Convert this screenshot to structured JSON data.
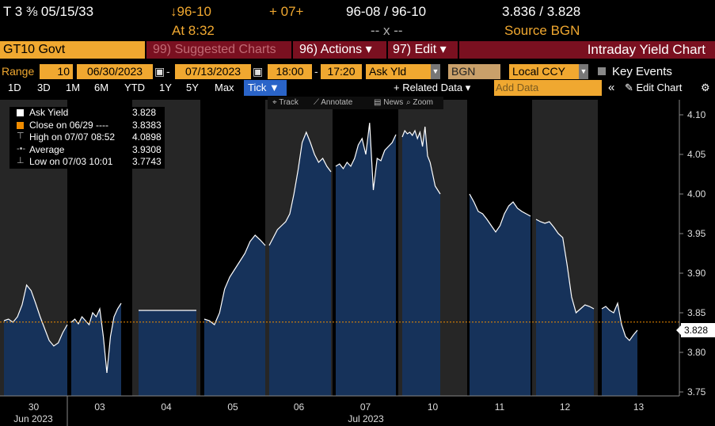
{
  "ticker": {
    "security": "T 3 ⅜ 05/15/33",
    "change": "↓96-10",
    "change_at": "At 8:32",
    "net": "+ 07+",
    "bid_ask": "96-08 / 96-10",
    "bid_ask_size": "-- x --",
    "yields": "3.836 / 3.828",
    "source": "Source BGN"
  },
  "header": {
    "security": "GT10 Govt",
    "suggested": "99) Suggested Charts",
    "actions": "96) Actions ▾",
    "edit": "97) Edit ▾",
    "title": "Intraday Yield Chart"
  },
  "controls": {
    "range_label": "Range",
    "interval": "10",
    "start_date": "06/30/2023",
    "end_date": "07/13/2023",
    "start_time": "18:00",
    "end_time": "17:20",
    "field": "Ask Yld",
    "source": "BGN",
    "currency": "Local CCY",
    "key_events": "Key Events"
  },
  "periods": {
    "items": [
      "1D",
      "3D",
      "1M",
      "6M",
      "YTD",
      "1Y",
      "5Y",
      "Max"
    ],
    "selected": "Tick ▼",
    "related": "+ Related Data ▾",
    "add_data": "Add Data",
    "edit_chart": "✎ Edit Chart",
    "collapse": "«"
  },
  "toolbar": {
    "track": "⌖ Track",
    "annotate": "⟋ Annotate",
    "news": "▤ News",
    "zoom": "⌕ Zoom"
  },
  "legend": {
    "ask_yield": {
      "label": "Ask Yield",
      "value": "3.828"
    },
    "close": {
      "label": "Close on 06/29 ----",
      "value": "3.8383"
    },
    "high": {
      "label": "High on 07/07 08:52",
      "value": "4.0898"
    },
    "average": {
      "label": "Average",
      "value": "3.9308"
    },
    "low": {
      "label": "Low on 07/03 10:01",
      "value": "3.7743"
    }
  },
  "colors": {
    "area_fill": "#16325a",
    "line": "#ffffff",
    "close_line": "#f08c00",
    "orange": "#f0a830",
    "red_bar": "#7a1020"
  },
  "chart_data": {
    "type": "area",
    "title": "Intraday Yield Chart",
    "ylim": [
      3.75,
      4.1
    ],
    "yticks": [
      3.75,
      3.8,
      3.85,
      3.9,
      3.95,
      4.0,
      4.05,
      4.1
    ],
    "close_line": 3.8383,
    "last_value": "3.828",
    "x_tick_labels": [
      "30",
      "03",
      "04",
      "05",
      "06",
      "07",
      "10",
      "11",
      "12",
      "13"
    ],
    "x_month_labels": [
      "Jun 2023",
      "Jul 2023"
    ],
    "sessions": [
      {
        "day": "30",
        "values": [
          3.84,
          3.842,
          3.838,
          3.845,
          3.86,
          3.885,
          3.878,
          3.862,
          3.845,
          3.83,
          3.815,
          3.808,
          3.812,
          3.825,
          3.835
        ]
      },
      {
        "day": "03",
        "values": [
          3.838,
          3.842,
          3.836,
          3.845,
          3.84,
          3.835,
          3.85,
          3.845,
          3.855,
          3.82,
          3.774,
          3.82,
          3.845,
          3.855,
          3.862
        ]
      },
      {
        "day": "04",
        "values": [
          3.853,
          3.853
        ]
      },
      {
        "day": "05",
        "values": [
          3.842,
          3.84,
          3.835,
          3.85,
          3.88,
          3.895,
          3.905,
          3.915,
          3.925,
          3.94,
          3.948,
          3.942,
          3.935
        ]
      },
      {
        "day": "06",
        "values": [
          3.935,
          3.945,
          3.955,
          3.96,
          3.965,
          3.975,
          4.0,
          4.03,
          4.065,
          4.078,
          4.065,
          4.05,
          4.04,
          4.045,
          4.035,
          4.028
        ]
      },
      {
        "day": "07",
        "values": [
          4.035,
          4.038,
          4.032,
          4.04,
          4.035,
          4.045,
          4.062,
          4.07,
          4.05,
          4.0898,
          4.005,
          4.045,
          4.042,
          4.055,
          4.06,
          4.065,
          4.075
        ]
      },
      {
        "day": "10",
        "values": [
          4.072,
          4.08,
          4.076,
          4.078,
          4.074,
          4.08,
          4.07,
          4.078,
          4.06,
          4.085,
          4.048,
          4.04,
          4.025,
          4.01,
          4.005,
          4.0
        ]
      },
      {
        "day": "11",
        "values": [
          4.0,
          3.99,
          3.978,
          3.975,
          3.968,
          3.96,
          3.952,
          3.96,
          3.975,
          3.985,
          3.99,
          3.982,
          3.978,
          3.975,
          3.972
        ]
      },
      {
        "day": "12",
        "values": [
          3.968,
          3.965,
          3.963,
          3.965,
          3.958,
          3.95,
          3.945,
          3.91,
          3.87,
          3.85,
          3.855,
          3.86,
          3.858,
          3.855
        ]
      },
      {
        "day": "13",
        "values": [
          3.855,
          3.858,
          3.853,
          3.85,
          3.862,
          3.835,
          3.82,
          3.815,
          3.822,
          3.828
        ]
      }
    ]
  }
}
